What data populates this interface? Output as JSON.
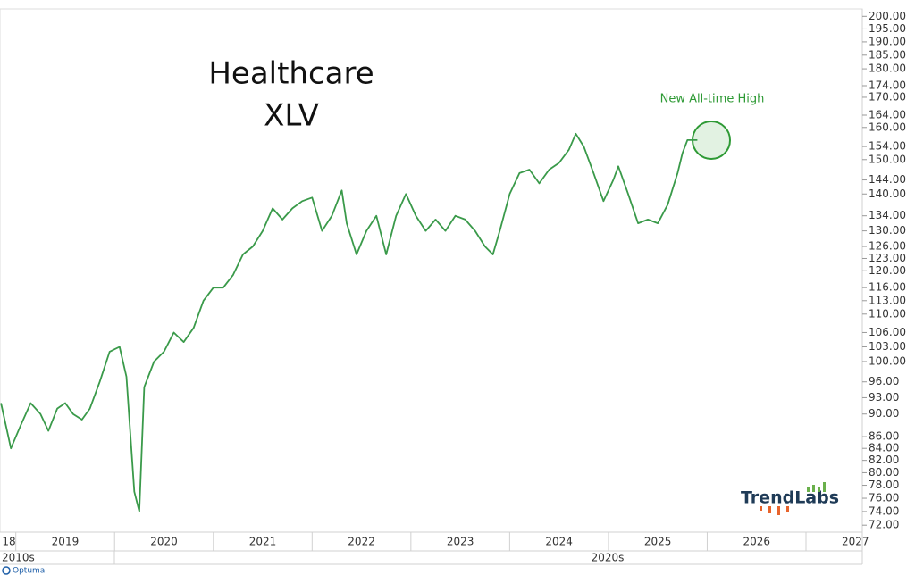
{
  "chart_data": {
    "type": "line",
    "title": "Healthcare",
    "subtitle": "XLV",
    "annotation": "New All-time High",
    "watermark": "TrendLabs",
    "source": "Optuma",
    "decade_labels": [
      "2010s",
      "2020s"
    ],
    "log_scale": true,
    "x": [
      2018.85,
      2018.95,
      2019.05,
      2019.15,
      2019.25,
      2019.33,
      2019.42,
      2019.5,
      2019.58,
      2019.67,
      2019.75,
      2019.85,
      2019.95,
      2020.05,
      2020.12,
      2020.2,
      2020.25,
      2020.3,
      2020.4,
      2020.5,
      2020.6,
      2020.7,
      2020.8,
      2020.9,
      2021.0,
      2021.1,
      2021.2,
      2021.3,
      2021.4,
      2021.5,
      2021.6,
      2021.7,
      2021.8,
      2021.9,
      2022.0,
      2022.1,
      2022.2,
      2022.3,
      2022.35,
      2022.45,
      2022.55,
      2022.65,
      2022.75,
      2022.85,
      2022.95,
      2023.05,
      2023.15,
      2023.25,
      2023.35,
      2023.45,
      2023.55,
      2023.65,
      2023.75,
      2023.83,
      2023.9,
      2024.0,
      2024.1,
      2024.2,
      2024.3,
      2024.4,
      2024.5,
      2024.6,
      2024.67,
      2024.75,
      2024.85,
      2024.95,
      2025.05,
      2025.1,
      2025.2,
      2025.3,
      2025.4,
      2025.5,
      2025.6,
      2025.7,
      2025.75,
      2025.8,
      2025.9
    ],
    "series": [
      {
        "color": "#3a9a4a",
        "values": [
          92,
          84,
          88,
          92,
          90,
          87,
          91,
          92,
          90,
          89,
          91,
          96,
          102,
          103,
          97,
          77,
          74,
          95,
          100,
          102,
          106,
          104,
          107,
          113,
          116,
          116,
          119,
          124,
          126,
          130,
          136,
          133,
          136,
          138,
          139,
          130,
          134,
          141,
          132,
          124,
          130,
          134,
          124,
          134,
          140,
          134,
          130,
          133,
          130,
          134,
          133,
          130,
          126,
          124,
          130,
          140,
          146,
          147,
          143,
          147,
          149,
          153,
          158,
          154,
          146,
          138,
          144,
          148,
          140,
          132,
          133,
          132,
          137,
          146,
          152,
          156,
          156
        ]
      }
    ],
    "xlim": [
      2018.84,
      2027.57
    ],
    "xticks": [
      {
        "value": 2018,
        "label": "18"
      },
      2019,
      2020,
      2021,
      2022,
      2023,
      2024,
      2025,
      2026,
      2027
    ],
    "ylim": [
      71,
      203
    ],
    "yticks": [
      {
        "value": 200,
        "label": "200.00"
      },
      {
        "value": 195,
        "label": "195.00"
      },
      {
        "value": 190,
        "label": "190.00"
      },
      {
        "value": 185,
        "label": "185.00"
      },
      {
        "value": 180,
        "label": "180.00"
      },
      {
        "value": 174,
        "label": "174.00"
      },
      {
        "value": 170,
        "label": "170.00"
      },
      {
        "value": 164,
        "label": "164.00"
      },
      {
        "value": 160,
        "label": "160.00"
      },
      {
        "value": 154,
        "label": "154.00"
      },
      {
        "value": 150,
        "label": "150.00"
      },
      {
        "value": 144,
        "label": "144.00"
      },
      {
        "value": 140,
        "label": "140.00"
      },
      {
        "value": 134,
        "label": "134.00"
      },
      {
        "value": 130,
        "label": "130.00"
      },
      {
        "value": 126,
        "label": "126.00"
      },
      {
        "value": 123,
        "label": "123.00"
      },
      {
        "value": 120,
        "label": "120.00"
      },
      {
        "value": 116,
        "label": "116.00"
      },
      {
        "value": 113,
        "label": "113.00"
      },
      {
        "value": 110,
        "label": "110.00"
      },
      {
        "value": 106,
        "label": "106.00"
      },
      {
        "value": 103,
        "label": "103.00"
      },
      {
        "value": 100,
        "label": "100.00"
      },
      {
        "value": 96,
        "label": "96.00"
      },
      {
        "value": 93,
        "label": "93.00"
      },
      {
        "value": 90,
        "label": "90.00"
      },
      {
        "value": 86,
        "label": "86.00"
      },
      {
        "value": 84,
        "label": "84.00"
      },
      {
        "value": 82,
        "label": "82.00"
      },
      {
        "value": 80,
        "label": "80.00"
      },
      {
        "value": 78,
        "label": "78.00"
      },
      {
        "value": 76,
        "label": "76.00"
      },
      {
        "value": 74,
        "label": "74.00"
      },
      {
        "value": 72,
        "label": "72.00"
      }
    ],
    "grid": false
  }
}
